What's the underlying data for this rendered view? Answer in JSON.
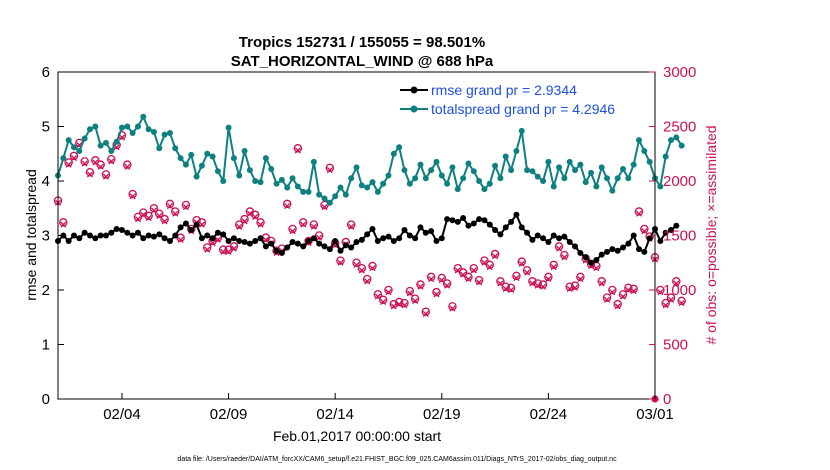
{
  "chart_data": {
    "type": "line",
    "title": "Tropics 152731 / 155055 = 98.501%",
    "subtitle": "SAT_HORIZONTAL_WIND @ 688 hPa",
    "xlabel": "Feb.01,2017 00:00:00 start",
    "ylabel_left": "rmse and totalspread",
    "ylabel_right": "# of obs: o=possible; ×=assimilated",
    "footer": "data file: /Users/raeder/DAI/ATM_forcXX/CAM6_setup/f.e21.FHIST_BGC.f09_025.CAM6assim.011/Diags_NTrS_2017-02/obs_diag_output.nc",
    "xlim": [
      0,
      28
    ],
    "ylim_left": [
      0,
      6
    ],
    "ylim_right": [
      0,
      3000
    ],
    "x_ticks": [
      {
        "value": 3,
        "label": "02/04"
      },
      {
        "value": 8,
        "label": "02/09"
      },
      {
        "value": 13,
        "label": "02/14"
      },
      {
        "value": 18,
        "label": "02/19"
      },
      {
        "value": 23,
        "label": "02/24"
      },
      {
        "value": 28,
        "label": "03/01"
      }
    ],
    "y_ticks_left": [
      "0",
      "1",
      "2",
      "3",
      "4",
      "5",
      "6"
    ],
    "y_ticks_right": [
      "0",
      "500",
      "1000",
      "1500",
      "2000",
      "2500",
      "3000"
    ],
    "colors": {
      "rmse": "#000000",
      "spread": "#0f8080",
      "obs": "#cc1155",
      "legend_text": "#1f4fe0"
    },
    "series": [
      {
        "name": "rmse grand pr = 2.9344",
        "axis": "left",
        "x_start": 0,
        "x_step": 0.25,
        "values": [
          2.9,
          3.0,
          2.9,
          3.0,
          2.95,
          3.05,
          3.0,
          2.95,
          3.0,
          3.0,
          3.05,
          3.12,
          3.1,
          3.05,
          3.0,
          3.05,
          2.95,
          3.0,
          2.98,
          3.02,
          2.95,
          2.9,
          3.0,
          3.15,
          3.22,
          3.1,
          3.2,
          2.95,
          3.0,
          2.95,
          3.05,
          3.02,
          2.9,
          2.95,
          2.9,
          2.88,
          2.85,
          2.9,
          2.95,
          2.8,
          2.85,
          2.72,
          2.68,
          2.78,
          2.88,
          2.85,
          2.8,
          2.9,
          2.95,
          2.85,
          2.8,
          2.75,
          2.9,
          2.72,
          2.82,
          2.78,
          2.88,
          2.92,
          3.02,
          3.12,
          2.9,
          2.95,
          2.98,
          2.9,
          2.95,
          3.1,
          3.0,
          2.95,
          3.15,
          3.05,
          3.08,
          2.9,
          2.95,
          3.3,
          3.28,
          3.25,
          3.32,
          3.18,
          3.22,
          3.3,
          3.28,
          3.2,
          3.1,
          3.02,
          3.15,
          3.25,
          3.38,
          3.15,
          3.05,
          2.92,
          3.0,
          2.95,
          2.88,
          3.0,
          2.95,
          2.98,
          2.88,
          2.8,
          2.68,
          2.6,
          2.5,
          2.55,
          2.65,
          2.7,
          2.75,
          2.72,
          2.78,
          2.85,
          3.0,
          2.75,
          2.7,
          2.95,
          3.12,
          2.9,
          3.05,
          3.1,
          3.18
        ]
      },
      {
        "name": "totalspread grand pr = 4.2946",
        "axis": "left",
        "x_start": 0,
        "x_step": 0.25,
        "values": [
          4.1,
          4.42,
          4.75,
          4.62,
          4.55,
          4.78,
          4.95,
          5.0,
          4.65,
          4.7,
          4.55,
          4.72,
          4.98,
          5.0,
          4.88,
          5.0,
          5.18,
          4.95,
          4.9,
          4.6,
          4.85,
          4.88,
          4.6,
          4.42,
          4.3,
          4.48,
          4.08,
          4.28,
          4.5,
          4.45,
          4.18,
          4.0,
          4.98,
          4.42,
          4.1,
          4.55,
          4.2,
          4.0,
          3.98,
          4.42,
          4.22,
          3.95,
          4.02,
          3.88,
          4.05,
          3.9,
          3.8,
          3.8,
          4.35,
          3.75,
          3.68,
          3.6,
          3.72,
          3.88,
          3.75,
          4.05,
          4.25,
          3.92,
          3.88,
          3.98,
          3.8,
          3.95,
          4.1,
          4.5,
          4.62,
          4.2,
          3.95,
          4.05,
          4.3,
          4.05,
          4.2,
          4.35,
          4.1,
          3.95,
          4.25,
          3.85,
          4.05,
          4.32,
          4.18,
          4.0,
          3.85,
          3.95,
          4.28,
          4.05,
          4.45,
          4.2,
          4.55,
          4.92,
          4.2,
          4.18,
          4.08,
          4.0,
          4.35,
          3.9,
          4.25,
          4.05,
          4.35,
          4.2,
          4.3,
          3.98,
          4.15,
          3.9,
          4.25,
          4.05,
          3.82,
          4.05,
          4.22,
          4.05,
          4.3,
          4.75,
          4.55,
          4.35,
          4.05,
          3.9,
          4.45,
          4.75,
          4.8,
          4.65
        ]
      },
      {
        "name": "# of obs possible",
        "axis": "right",
        "x_start": 0,
        "x_step": 0.25,
        "values": [
          1820,
          1620,
          2170,
          2230,
          2350,
          2180,
          2080,
          2190,
          2150,
          2060,
          2200,
          2330,
          2420,
          2150,
          1880,
          1670,
          1710,
          1680,
          1750,
          1700,
          1650,
          1790,
          1720,
          1480,
          1780,
          1560,
          1640,
          1620,
          1390,
          1450,
          1480,
          1370,
          1370,
          1400,
          1600,
          1650,
          1720,
          1690,
          1620,
          1480,
          1450,
          1360,
          1380,
          1790,
          1560,
          2300,
          1620,
          1450,
          1600,
          1500,
          1780,
          2120,
          1430,
          1270,
          1440,
          1600,
          1250,
          1200,
          1100,
          1220,
          960,
          910,
          1000,
          870,
          890,
          880,
          990,
          920,
          1050,
          800,
          1120,
          980,
          1110,
          1060,
          850,
          1200,
          1160,
          1120,
          1200,
          1090,
          1270,
          1230,
          1330,
          1080,
          1030,
          1020,
          1130,
          1260,
          1180,
          1080,
          1060,
          1050,
          1120,
          1230,
          1400,
          1320,
          1030,
          1040,
          1120,
          1290,
          1240,
          1220,
          1080,
          930,
          1000,
          870,
          960,
          1020,
          1010,
          1720,
          1560,
          1490,
          1300,
          1000,
          880,
          930,
          1080,
          900
        ]
      },
      {
        "name": "# of obs assimilated",
        "axis": "right",
        "x_start": 0,
        "x_step": 0.25,
        "values": [
          1800,
          1600,
          2150,
          2210,
          2330,
          2160,
          2060,
          2170,
          2130,
          2040,
          2180,
          2310,
          2400,
          2130,
          1860,
          1650,
          1690,
          1660,
          1730,
          1680,
          1630,
          1770,
          1700,
          1460,
          1760,
          1540,
          1620,
          1600,
          1370,
          1430,
          1460,
          1350,
          1350,
          1380,
          1580,
          1630,
          1700,
          1670,
          1600,
          1460,
          1430,
          1340,
          1360,
          1770,
          1540,
          2280,
          1600,
          1430,
          1580,
          1480,
          1760,
          2100,
          1410,
          1250,
          1420,
          1580,
          1230,
          1180,
          1080,
          1200,
          940,
          890,
          980,
          850,
          870,
          860,
          970,
          900,
          1030,
          780,
          1100,
          960,
          1090,
          1040,
          830,
          1180,
          1140,
          1100,
          1180,
          1070,
          1250,
          1210,
          1310,
          1060,
          1010,
          1000,
          1110,
          1240,
          1160,
          1060,
          1040,
          1030,
          1100,
          1210,
          1380,
          1300,
          1010,
          1020,
          1100,
          1270,
          1220,
          1200,
          1060,
          910,
          980,
          850,
          940,
          1000,
          990,
          1700,
          1540,
          1470,
          1280,
          980,
          860,
          910,
          1060,
          880
        ]
      }
    ],
    "legend": [
      "rmse grand pr = 2.9344",
      "totalspread grand pr = 4.2946"
    ],
    "legend_position": "top-right",
    "grid": false
  }
}
